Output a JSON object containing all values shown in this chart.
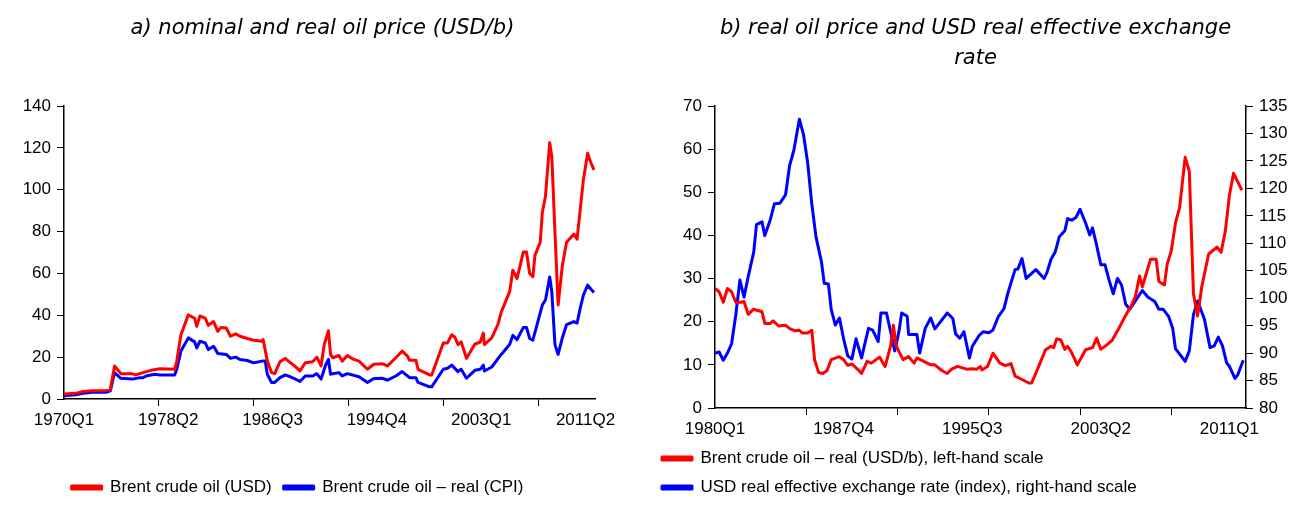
{
  "chart_data": [
    {
      "type": "line",
      "title": "a) nominal and real oil price (USD/b)",
      "xlim": [
        "1970-01",
        "2012-01"
      ],
      "xticks": [
        {
          "value": "1970-01",
          "label": "1970Q1"
        },
        {
          "value": "1977-07",
          "label": null
        },
        {
          "value": "1978-04",
          "label": "1978Q2"
        },
        {
          "value": "1985-01",
          "label": null
        },
        {
          "value": "1986-07",
          "label": "1986Q3"
        },
        {
          "value": "1992-07",
          "label": null
        },
        {
          "value": "1994-10",
          "label": "1994Q4"
        },
        {
          "value": "2000-01",
          "label": null
        },
        {
          "value": "2003-01",
          "label": "2003Q1"
        },
        {
          "value": "2007-07",
          "label": null
        },
        {
          "value": "2011-04",
          "label": "2011Q2"
        }
      ],
      "ylim": [
        0,
        140
      ],
      "yticks": [
        0,
        20,
        40,
        60,
        80,
        100,
        120,
        140
      ],
      "grid": false,
      "legend": "bottom",
      "marker": "none",
      "line_style": "solid",
      "series": [
        {
          "name": "Brent crude oil (USD)",
          "color": "#ff0000",
          "x": [
            "1970-01",
            "1970-12",
            "1971-07",
            "1972-04",
            "1973-05",
            "1973-09",
            "1974-01",
            "1974-07",
            "1975-05",
            "1975-09",
            "1976-04",
            "1977-01",
            "1977-08",
            "1978-10",
            "1978-12",
            "1979-04",
            "1979-11",
            "1980-05",
            "1980-07",
            "1980-10",
            "1981-03",
            "1981-06",
            "1981-11",
            "1982-03",
            "1982-06",
            "1982-11",
            "1983-03",
            "1983-08",
            "1983-12",
            "1984-07",
            "1985-01",
            "1985-09",
            "1985-10",
            "1986-02",
            "1986-06",
            "1986-09",
            "1987-02",
            "1987-07",
            "1987-12",
            "1988-03",
            "1988-09",
            "1989-02",
            "1989-09",
            "1990-01",
            "1990-05",
            "1990-08",
            "1990-12",
            "1991-02",
            "1991-04",
            "1991-10",
            "1992-01",
            "1992-06",
            "1992-12",
            "1993-05",
            "1994-01",
            "1994-07",
            "1995-03",
            "1995-08",
            "1996-04",
            "1996-10",
            "1997-03",
            "1997-05",
            "1997-11",
            "1998-01",
            "1998-12",
            "1999-02",
            "2000-01",
            "2000-05",
            "2000-09",
            "2000-12",
            "2001-03",
            "2001-06",
            "2001-11",
            "2002-07",
            "2002-12",
            "2003-03",
            "2003-04",
            "2003-11",
            "2004-05",
            "2004-08",
            "2005-04",
            "2005-07",
            "2005-11",
            "2006-05",
            "2006-08",
            "2006-11",
            "2007-02",
            "2007-04",
            "2007-09",
            "2007-11",
            "2008-02",
            "2008-06",
            "2008-08",
            "2008-11",
            "2009-02",
            "2009-06",
            "2009-10",
            "2010-05",
            "2010-08",
            "2010-11",
            "2011-02",
            "2011-06",
            "2011-09",
            "2011-12"
          ],
          "values": [
            2.4,
            2.7,
            3.6,
            3.9,
            4.1,
            4.7,
            15.8,
            12.1,
            12.1,
            11.5,
            12.6,
            13.9,
            14.5,
            14.2,
            18,
            30.7,
            40.2,
            38.6,
            34.7,
            39.7,
            38.6,
            35.2,
            37,
            32.3,
            34.2,
            33.9,
            30,
            31.1,
            30,
            28.9,
            28.1,
            27.6,
            28.4,
            18.1,
            12.6,
            12.1,
            17.8,
            19.4,
            17.3,
            16.2,
            13.4,
            17.3,
            17.8,
            20,
            15.8,
            26,
            32.6,
            21.3,
            19.7,
            20.8,
            18.1,
            20.8,
            18.9,
            18.1,
            14.2,
            16.6,
            16.9,
            15.8,
            19.7,
            22.9,
            20.5,
            18.5,
            18.5,
            14.2,
            11.5,
            11.5,
            26.8,
            26.8,
            30.7,
            29.5,
            26,
            27.3,
            19.4,
            26.3,
            27.1,
            31.5,
            26,
            29.2,
            35.8,
            41.5,
            51.3,
            61.5,
            57.6,
            70.2,
            70.2,
            60,
            58.4,
            68.6,
            74.9,
            89.1,
            96.9,
            122.5,
            115.9,
            79.6,
            44.9,
            63.8,
            74.9,
            78.8,
            76.4,
            90.6,
            104.8,
            117.4,
            113,
            109.5
          ]
        },
        {
          "name": "Brent crude oil – real (CPI)",
          "color": "#0000ff",
          "x": [
            "1970-01",
            "1970-12",
            "1971-07",
            "1972-04",
            "1973-05",
            "1973-09",
            "1974-01",
            "1974-07",
            "1975-06",
            "1976-01",
            "1976-04",
            "1976-07",
            "1977-03",
            "1977-08",
            "1978-10",
            "1978-12",
            "1979-04",
            "1979-11",
            "1980-05",
            "1980-07",
            "1980-10",
            "1981-03",
            "1981-06",
            "1981-11",
            "1982-03",
            "1982-11",
            "1983-03",
            "1983-08",
            "1983-12",
            "1984-07",
            "1985-01",
            "1985-09",
            "1985-12",
            "1986-02",
            "1986-06",
            "1986-09",
            "1987-02",
            "1987-07",
            "1987-12",
            "1988-03",
            "1988-09",
            "1989-02",
            "1989-09",
            "1990-01",
            "1990-05",
            "1990-09",
            "1990-12",
            "1991-02",
            "1991-04",
            "1991-10",
            "1992-01",
            "1992-06",
            "1993-05",
            "1994-01",
            "1994-07",
            "1995-03",
            "1995-08",
            "1996-04",
            "1996-10",
            "1997-05",
            "1997-11",
            "1998-01",
            "1998-12",
            "1999-02",
            "2000-01",
            "2000-05",
            "2000-09",
            "2001-03",
            "2001-06",
            "2001-11",
            "2002-07",
            "2002-12",
            "2003-03",
            "2003-04",
            "2003-11",
            "2004-08",
            "2005-04",
            "2005-07",
            "2005-11",
            "2006-05",
            "2006-08",
            "2006-11",
            "2007-02",
            "2007-06",
            "2007-11",
            "2008-02",
            "2008-06",
            "2008-08",
            "2008-11",
            "2009-02",
            "2009-06",
            "2009-10",
            "2010-05",
            "2010-08",
            "2010-11",
            "2011-02",
            "2011-06",
            "2011-12"
          ],
          "values": [
            1.6,
            2,
            2.7,
            3.2,
            3.2,
            3.9,
            12.6,
            9.9,
            9.5,
            10.2,
            10.2,
            11,
            11.8,
            11.5,
            11.5,
            14.2,
            22.9,
            29.2,
            27.3,
            24.4,
            27.6,
            26.8,
            23.6,
            25.2,
            21.7,
            21.3,
            19.4,
            20,
            18.9,
            18.4,
            17.3,
            18.1,
            18.1,
            11.8,
            7.9,
            7.9,
            10.2,
            11.5,
            10.6,
            9.9,
            8.4,
            11,
            11,
            12.1,
            9.5,
            15.8,
            18.9,
            11.8,
            12.1,
            12.6,
            11,
            12.1,
            10.6,
            7.9,
            9.8,
            9.9,
            9,
            11,
            13.1,
            10.2,
            10.2,
            7.9,
            5.8,
            5.8,
            14.2,
            14.7,
            16.2,
            13.1,
            14.2,
            9.9,
            13.7,
            14.2,
            16.2,
            13.4,
            15.3,
            21.3,
            26,
            30.4,
            28.4,
            34.2,
            34.2,
            28.9,
            28.1,
            35.5,
            44.9,
            47.3,
            58.3,
            51.2,
            26,
            21.3,
            29.2,
            35.5,
            37,
            36.3,
            43.4,
            49.7,
            54.4,
            50.9
          ]
        }
      ]
    },
    {
      "type": "line",
      "title": "b) real oil price and USD real effective exchange rate",
      "xlim": [
        "1980-01",
        "2012-01"
      ],
      "xticks": [
        {
          "value": "1980-01",
          "label": "1980Q1"
        },
        {
          "value": "1985-07",
          "label": null
        },
        {
          "value": "1987-10",
          "label": "1987Q4"
        },
        {
          "value": "1991-01",
          "label": null
        },
        {
          "value": "1995-07",
          "label": "1995Q3"
        },
        {
          "value": "1996-07",
          "label": null
        },
        {
          "value": "2002-01",
          "label": null
        },
        {
          "value": "2003-04",
          "label": "2003Q2"
        },
        {
          "value": "2007-07",
          "label": null
        },
        {
          "value": "2011-01",
          "label": "2011Q1"
        }
      ],
      "ylim": [
        0,
        70
      ],
      "yticks": [
        0,
        10,
        20,
        30,
        40,
        50,
        60,
        70
      ],
      "y2lim": [
        80,
        135
      ],
      "y2ticks": [
        80,
        85,
        90,
        95,
        100,
        105,
        110,
        115,
        120,
        125,
        130,
        135
      ],
      "grid": false,
      "legend": "bottom left",
      "marker": "none",
      "line_style": "solid",
      "series": [
        {
          "name": "Brent crude oil – real (USD/b), left-hand scale",
          "color": "#ff0000",
          "axis": "y",
          "x": [
            "1980-01",
            "1980-04",
            "1980-07",
            "1980-10",
            "1981-01",
            "1981-04",
            "1981-08",
            "1981-10",
            "1982-01",
            "1982-05",
            "1982-11",
            "1983-01",
            "1983-05",
            "1983-07",
            "1983-11",
            "1984-04",
            "1984-07",
            "1984-11",
            "1985-02",
            "1985-04",
            "1985-08",
            "1985-11",
            "1986-01",
            "1986-04",
            "1986-07",
            "1986-10",
            "1987-01",
            "1987-07",
            "1987-10",
            "1988-01",
            "1988-04",
            "1988-09",
            "1988-11",
            "1989-03",
            "1989-06",
            "1989-12",
            "1990-04",
            "1990-08",
            "1990-10",
            "1990-12",
            "1991-05",
            "1991-09",
            "1992-01",
            "1992-03",
            "1992-08",
            "1993-01",
            "1993-04",
            "1993-09",
            "1994-01",
            "1994-04",
            "1994-08",
            "1994-09",
            "1995-03",
            "1995-07",
            "1995-10",
            "1996-01",
            "1996-02",
            "1996-06",
            "1996-10",
            "1997-03",
            "1997-07",
            "1997-11",
            "1998-02",
            "1998-07",
            "1998-12",
            "1999-02",
            "1999-07",
            "1999-12",
            "2000-04",
            "2000-06",
            "2000-08",
            "2000-11",
            "2001-02",
            "2001-04",
            "2001-07",
            "2001-11",
            "2002-05",
            "2002-10",
            "2003-01",
            "2003-04",
            "2003-09",
            "2003-12",
            "2004-05",
            "2004-09",
            "2005-02",
            "2005-05",
            "2005-08",
            "2005-10",
            "2006-04",
            "2006-08",
            "2006-10",
            "2007-02",
            "2007-04",
            "2007-07",
            "2007-10",
            "2008-01",
            "2008-05",
            "2008-08",
            "2008-11",
            "2009-02",
            "2009-05",
            "2009-10",
            "2010-04",
            "2010-07",
            "2010-10",
            "2011-01",
            "2011-04",
            "2011-10"
          ],
          "values": [
            27.7,
            26.9,
            24.5,
            27.7,
            26.9,
            24.5,
            24.5,
            24.7,
            21.7,
            22.9,
            22.3,
            19.6,
            19.6,
            20.2,
            19,
            19.2,
            18.4,
            17.9,
            18,
            17.4,
            17.4,
            18,
            11.2,
            8.2,
            8,
            8.7,
            11.2,
            11.9,
            11.2,
            9.9,
            10.2,
            8.7,
            8,
            10.8,
            10.4,
            11.8,
            9.6,
            14.4,
            19.2,
            14.4,
            11.2,
            11.9,
            10.4,
            11.6,
            10.8,
            10,
            10,
            8.7,
            8,
            9,
            9.6,
            9.6,
            9,
            9.1,
            9,
            9.6,
            8.8,
            9.6,
            12.7,
            10.4,
            9.8,
            10.3,
            7.4,
            6.6,
            5.8,
            5.8,
            9.6,
            13.5,
            14.3,
            14,
            16,
            15.8,
            13.6,
            14.3,
            12.8,
            10,
            13.5,
            14,
            16.2,
            13.6,
            14.8,
            15.6,
            18.4,
            20.9,
            23.7,
            25.8,
            30.6,
            28.1,
            34.5,
            34.5,
            29.3,
            28.5,
            33.3,
            36.5,
            42.9,
            46.5,
            58.1,
            54.9,
            26.5,
            21.3,
            28.1,
            35.7,
            37.3,
            36.1,
            40.9,
            49.3,
            54.4,
            50.5
          ]
        },
        {
          "name": "USD real effective exchange rate (index), right-hand scale",
          "color": "#0000ff",
          "axis": "y2",
          "x": [
            "1980-01",
            "1980-04",
            "1980-07",
            "1980-10",
            "1981-01",
            "1981-04",
            "1981-07",
            "1981-10",
            "1982-01",
            "1982-05",
            "1982-07",
            "1982-11",
            "1983-01",
            "1983-05",
            "1983-08",
            "1983-12",
            "1984-04",
            "1984-07",
            "1984-10",
            "1985-02",
            "1985-05",
            "1985-08",
            "1985-11",
            "1986-02",
            "1986-06",
            "1986-08",
            "1986-11",
            "1987-01",
            "1987-04",
            "1987-07",
            "1987-10",
            "1988-01",
            "1988-04",
            "1988-07",
            "1988-11",
            "1989-01",
            "1989-04",
            "1989-07",
            "1989-11",
            "1990-01",
            "1990-05",
            "1990-08",
            "1990-11",
            "1991-02",
            "1991-04",
            "1991-08",
            "1991-09",
            "1992-03",
            "1992-05",
            "1992-09",
            "1993-01",
            "1993-04",
            "1994-01",
            "1994-05",
            "1994-07",
            "1994-10",
            "1995-01",
            "1995-05",
            "1995-07",
            "1995-12",
            "1996-03",
            "1996-07",
            "1996-10",
            "1997-02",
            "1997-06",
            "1997-09",
            "1998-02",
            "1998-04",
            "1998-07",
            "1998-10",
            "1999-05",
            "1999-11",
            "2000-01",
            "2000-04",
            "2000-07",
            "2000-10",
            "2001-02",
            "2001-04",
            "2001-07",
            "2001-10",
            "2002-01",
            "2002-05",
            "2002-08",
            "2002-10",
            "2003-01",
            "2003-04",
            "2003-07",
            "2003-10",
            "2004-01",
            "2004-04",
            "2004-07",
            "2004-10",
            "2005-01",
            "2005-05",
            "2005-10",
            "2006-02",
            "2006-07",
            "2006-10",
            "2007-01",
            "2007-05",
            "2007-08",
            "2007-10",
            "2008-05",
            "2008-08",
            "2008-11",
            "2009-02",
            "2009-07",
            "2009-09",
            "2009-11",
            "2010-02",
            "2010-05",
            "2010-08",
            "2010-11",
            "2011-01",
            "2011-05",
            "2011-07",
            "2011-11"
          ],
          "values": [
            90,
            90.2,
            88.7,
            90,
            91.7,
            96.9,
            103.3,
            100.2,
            103.9,
            108.4,
            113.4,
            113.9,
            111.4,
            114.3,
            117.2,
            117.3,
            118.8,
            124.2,
            126.9,
            132.6,
            129.8,
            124.7,
            117.2,
            111.2,
            106.6,
            102.7,
            102.6,
            98,
            95.1,
            96.4,
            92.6,
            89.5,
            88.9,
            92.6,
            89.1,
            91.3,
            94.5,
            94.2,
            92.1,
            97.3,
            97.3,
            93.9,
            90.4,
            93.9,
            97.3,
            96.7,
            93.4,
            93.4,
            90,
            94.5,
            96.4,
            94.4,
            97.3,
            96.3,
            93.5,
            92.7,
            93.9,
            89.1,
            91.2,
            93.2,
            93.9,
            93.7,
            94.2,
            96.7,
            98.1,
            101.1,
            105.2,
            105.3,
            107.2,
            103.6,
            105.2,
            103.6,
            104.6,
            107.1,
            108.4,
            111.2,
            112.3,
            114.5,
            114.2,
            114.7,
            116.2,
            113.7,
            111.5,
            112.8,
            109.6,
            106.1,
            106.1,
            103.3,
            100.8,
            103.6,
            102.4,
            98.9,
            98,
            99.5,
            101.4,
            100.2,
            99.4,
            98,
            98,
            96.7,
            94.5,
            90.8,
            88.5,
            90.4,
            97,
            99.5,
            96.1,
            93.5,
            91,
            91.3,
            92.9,
            91.3,
            88.2,
            87.6,
            85.4,
            86,
            88.7
          ]
        }
      ]
    }
  ]
}
